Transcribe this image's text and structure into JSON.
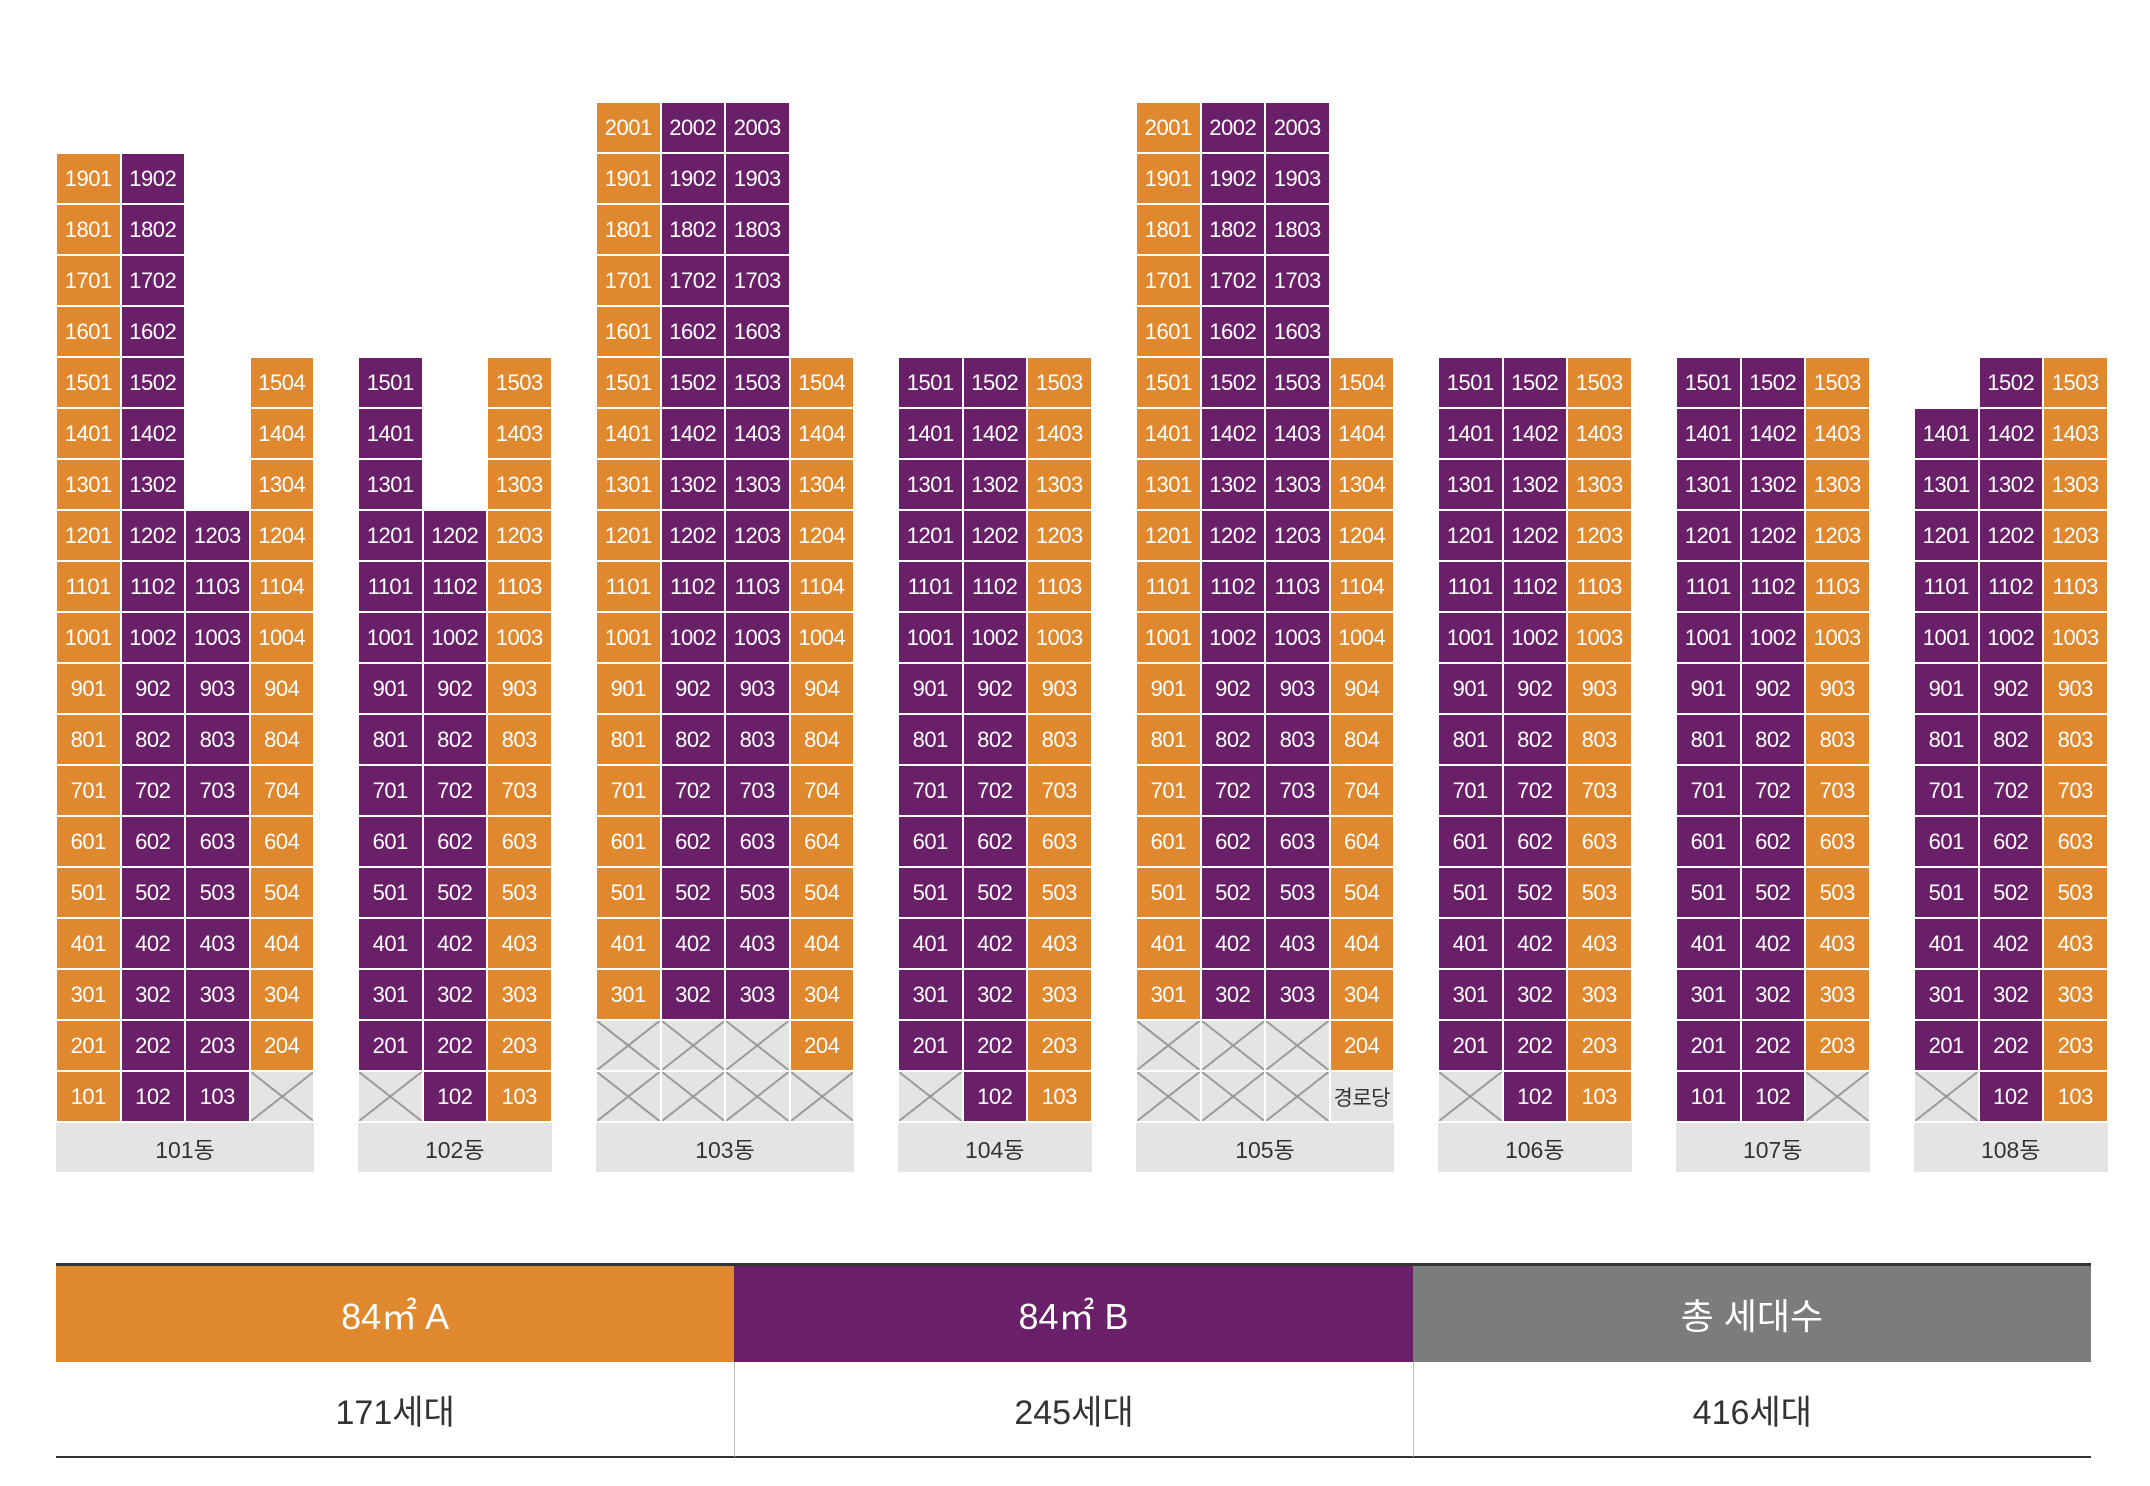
{
  "colors": {
    "A": "#e0882e",
    "B": "#6a1f69",
    "total": "#7a7c7e",
    "empty": "#e4e4e4"
  },
  "buildings": [
    {
      "name": "101동",
      "floors": [
        [
          "101",
          "102",
          "103",
          null
        ],
        [
          "201",
          "202",
          "203",
          "204"
        ],
        [
          "301",
          "302",
          "303",
          "304"
        ],
        [
          "401",
          "402",
          "403",
          "404"
        ],
        [
          "501",
          "502",
          "503",
          "504"
        ],
        [
          "601",
          "602",
          "603",
          "604"
        ],
        [
          "701",
          "702",
          "703",
          "704"
        ],
        [
          "801",
          "802",
          "803",
          "804"
        ],
        [
          "901",
          "902",
          "903",
          "904"
        ],
        [
          "1001",
          "1002",
          "1003",
          "1004"
        ],
        [
          "1101",
          "1102",
          "1103",
          "1104"
        ],
        [
          "1201",
          "1202",
          "1203",
          "1204"
        ],
        [
          "1301",
          "1302",
          "",
          "1304"
        ],
        [
          "1401",
          "1402",
          "",
          "1404"
        ],
        [
          "1501",
          "1502",
          "",
          "1504"
        ],
        [
          "1601",
          "1602",
          "",
          ""
        ],
        [
          "1701",
          "1702",
          "",
          ""
        ],
        [
          "1801",
          "1802",
          "",
          ""
        ],
        [
          "1901",
          "1902",
          "",
          ""
        ]
      ],
      "types": [
        "A",
        "B",
        "B",
        "A"
      ]
    },
    {
      "name": "102동",
      "floors": [
        [
          null,
          "102",
          "103"
        ],
        [
          "201",
          "202",
          "203"
        ],
        [
          "301",
          "302",
          "303"
        ],
        [
          "401",
          "402",
          "403"
        ],
        [
          "501",
          "502",
          "503"
        ],
        [
          "601",
          "602",
          "603"
        ],
        [
          "701",
          "702",
          "703"
        ],
        [
          "801",
          "802",
          "803"
        ],
        [
          "901",
          "902",
          "903"
        ],
        [
          "1001",
          "1002",
          "1003"
        ],
        [
          "1101",
          "1102",
          "1103"
        ],
        [
          "1201",
          "1202",
          "1203"
        ],
        [
          "1301",
          "",
          "1303"
        ],
        [
          "1401",
          "",
          "1403"
        ],
        [
          "1501",
          "",
          "1503"
        ]
      ],
      "types": [
        "B",
        "B",
        "A"
      ]
    },
    {
      "name": "103동",
      "floors": [
        [
          null,
          null,
          null,
          null
        ],
        [
          null,
          null,
          null,
          "204"
        ],
        [
          "301",
          "302",
          "303",
          "304"
        ],
        [
          "401",
          "402",
          "403",
          "404"
        ],
        [
          "501",
          "502",
          "503",
          "504"
        ],
        [
          "601",
          "602",
          "603",
          "604"
        ],
        [
          "701",
          "702",
          "703",
          "704"
        ],
        [
          "801",
          "802",
          "803",
          "804"
        ],
        [
          "901",
          "902",
          "903",
          "904"
        ],
        [
          "1001",
          "1002",
          "1003",
          "1004"
        ],
        [
          "1101",
          "1102",
          "1103",
          "1104"
        ],
        [
          "1201",
          "1202",
          "1203",
          "1204"
        ],
        [
          "1301",
          "1302",
          "1303",
          "1304"
        ],
        [
          "1401",
          "1402",
          "1403",
          "1404"
        ],
        [
          "1501",
          "1502",
          "1503",
          "1504"
        ],
        [
          "1601",
          "1602",
          "1603",
          ""
        ],
        [
          "1701",
          "1702",
          "1703",
          ""
        ],
        [
          "1801",
          "1802",
          "1803",
          ""
        ],
        [
          "1901",
          "1902",
          "1903",
          ""
        ],
        [
          "2001",
          "2002",
          "2003",
          ""
        ]
      ],
      "types": [
        "A",
        "B",
        "B",
        "A"
      ]
    },
    {
      "name": "104동",
      "floors": [
        [
          null,
          "102",
          "103"
        ],
        [
          "201",
          "202",
          "203"
        ],
        [
          "301",
          "302",
          "303"
        ],
        [
          "401",
          "402",
          "403"
        ],
        [
          "501",
          "502",
          "503"
        ],
        [
          "601",
          "602",
          "603"
        ],
        [
          "701",
          "702",
          "703"
        ],
        [
          "801",
          "802",
          "803"
        ],
        [
          "901",
          "902",
          "903"
        ],
        [
          "1001",
          "1002",
          "1003"
        ],
        [
          "1101",
          "1102",
          "1103"
        ],
        [
          "1201",
          "1202",
          "1203"
        ],
        [
          "1301",
          "1302",
          "1303"
        ],
        [
          "1401",
          "1402",
          "1403"
        ],
        [
          "1501",
          "1502",
          "1503"
        ]
      ],
      "types": [
        "B",
        "B",
        "A"
      ]
    },
    {
      "name": "105동",
      "special": "경로당",
      "floors": [
        [
          null,
          null,
          null,
          "@"
        ],
        [
          null,
          null,
          null,
          "204"
        ],
        [
          "301",
          "302",
          "303",
          "304"
        ],
        [
          "401",
          "402",
          "403",
          "404"
        ],
        [
          "501",
          "502",
          "503",
          "504"
        ],
        [
          "601",
          "602",
          "603",
          "604"
        ],
        [
          "701",
          "702",
          "703",
          "704"
        ],
        [
          "801",
          "802",
          "803",
          "804"
        ],
        [
          "901",
          "902",
          "903",
          "904"
        ],
        [
          "1001",
          "1002",
          "1003",
          "1004"
        ],
        [
          "1101",
          "1102",
          "1103",
          "1104"
        ],
        [
          "1201",
          "1202",
          "1203",
          "1204"
        ],
        [
          "1301",
          "1302",
          "1303",
          "1304"
        ],
        [
          "1401",
          "1402",
          "1403",
          "1404"
        ],
        [
          "1501",
          "1502",
          "1503",
          "1504"
        ],
        [
          "1601",
          "1602",
          "1603",
          ""
        ],
        [
          "1701",
          "1702",
          "1703",
          ""
        ],
        [
          "1801",
          "1802",
          "1803",
          ""
        ],
        [
          "1901",
          "1902",
          "1903",
          ""
        ],
        [
          "2001",
          "2002",
          "2003",
          ""
        ]
      ],
      "types": [
        "A",
        "B",
        "B",
        "A"
      ]
    },
    {
      "name": "106동",
      "floors": [
        [
          null,
          "102",
          "103"
        ],
        [
          "201",
          "202",
          "203"
        ],
        [
          "301",
          "302",
          "303"
        ],
        [
          "401",
          "402",
          "403"
        ],
        [
          "501",
          "502",
          "503"
        ],
        [
          "601",
          "602",
          "603"
        ],
        [
          "701",
          "702",
          "703"
        ],
        [
          "801",
          "802",
          "803"
        ],
        [
          "901",
          "902",
          "903"
        ],
        [
          "1001",
          "1002",
          "1003"
        ],
        [
          "1101",
          "1102",
          "1103"
        ],
        [
          "1201",
          "1202",
          "1203"
        ],
        [
          "1301",
          "1302",
          "1303"
        ],
        [
          "1401",
          "1402",
          "1403"
        ],
        [
          "1501",
          "1502",
          "1503"
        ]
      ],
      "types": [
        "B",
        "B",
        "A"
      ]
    },
    {
      "name": "107동",
      "floors": [
        [
          "101",
          "102",
          null
        ],
        [
          "201",
          "202",
          "203"
        ],
        [
          "301",
          "302",
          "303"
        ],
        [
          "401",
          "402",
          "403"
        ],
        [
          "501",
          "502",
          "503"
        ],
        [
          "601",
          "602",
          "603"
        ],
        [
          "701",
          "702",
          "703"
        ],
        [
          "801",
          "802",
          "803"
        ],
        [
          "901",
          "902",
          "903"
        ],
        [
          "1001",
          "1002",
          "1003"
        ],
        [
          "1101",
          "1102",
          "1103"
        ],
        [
          "1201",
          "1202",
          "1203"
        ],
        [
          "1301",
          "1302",
          "1303"
        ],
        [
          "1401",
          "1402",
          "1403"
        ],
        [
          "1501",
          "1502",
          "1503"
        ]
      ],
      "types": [
        "B",
        "B",
        "A"
      ]
    },
    {
      "name": "108동",
      "floors": [
        [
          null,
          "102",
          "103"
        ],
        [
          "201",
          "202",
          "203"
        ],
        [
          "301",
          "302",
          "303"
        ],
        [
          "401",
          "402",
          "403"
        ],
        [
          "501",
          "502",
          "503"
        ],
        [
          "601",
          "602",
          "603"
        ],
        [
          "701",
          "702",
          "703"
        ],
        [
          "801",
          "802",
          "803"
        ],
        [
          "901",
          "902",
          "903"
        ],
        [
          "1001",
          "1002",
          "1003"
        ],
        [
          "1101",
          "1102",
          "1103"
        ],
        [
          "1201",
          "1202",
          "1203"
        ],
        [
          "1301",
          "1302",
          "1303"
        ],
        [
          "1401",
          "1402",
          "1403"
        ],
        [
          "",
          "1502",
          "1503"
        ]
      ],
      "types": [
        "B",
        "B",
        "A"
      ]
    }
  ],
  "legend": {
    "type_a": {
      "label": "84㎡ A",
      "count": "171세대"
    },
    "type_b": {
      "label": "84㎡ B",
      "count": "245세대"
    },
    "total": {
      "label": "총 세대수",
      "count": "416세대"
    }
  }
}
